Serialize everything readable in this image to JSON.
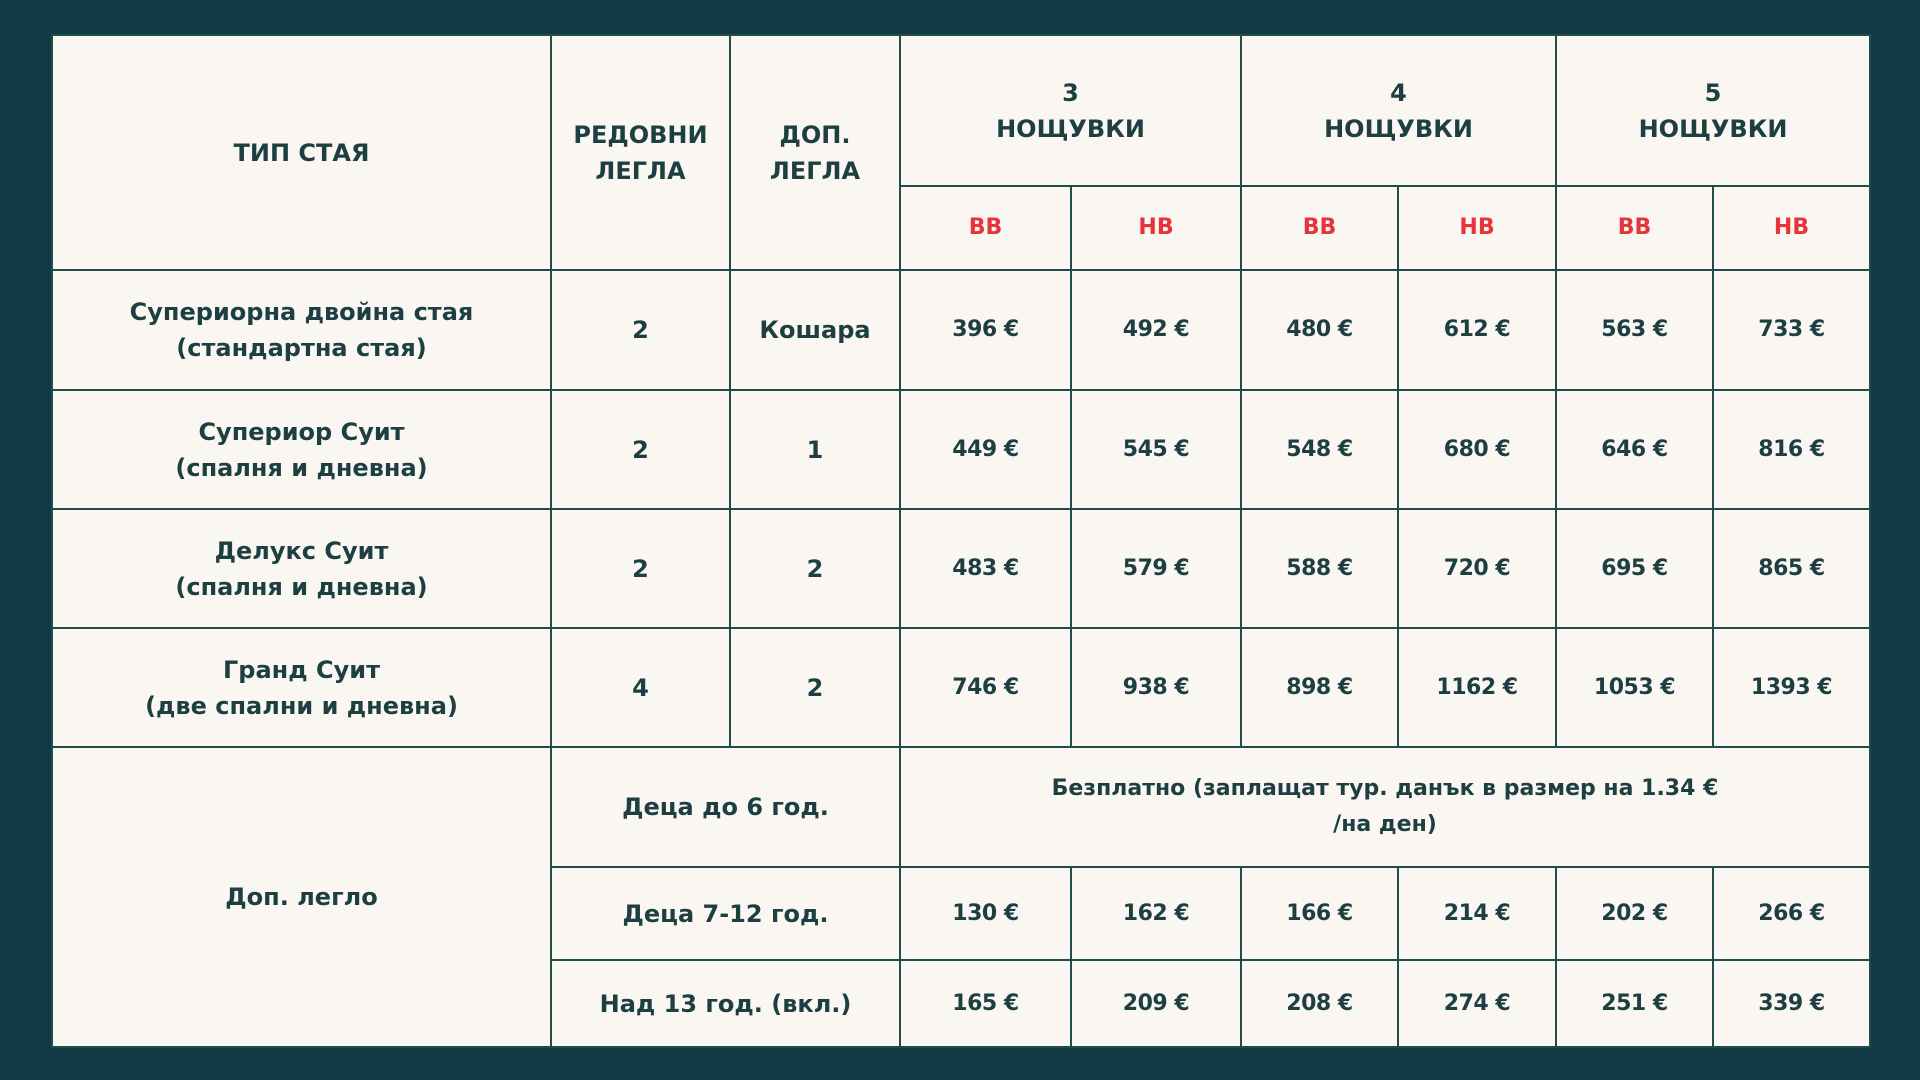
{
  "header": {
    "room_type": "ТИП СТАЯ",
    "regular_beds": [
      "РЕДОВНИ",
      "ЛЕГЛА"
    ],
    "extra_beds": [
      "ДОП.",
      "ЛЕГЛА"
    ],
    "nights": [
      [
        "3",
        "НОЩУВКИ"
      ],
      [
        "4",
        "НОЩУВКИ"
      ],
      [
        "5",
        "НОЩУВКИ"
      ]
    ],
    "rate_headers": [
      "ВВ",
      "НВ",
      "ВВ",
      "НВ",
      "ВВ",
      "НВ"
    ]
  },
  "rooms": [
    {
      "name": [
        "Супериорна двойна стая",
        "(стандартна стая)"
      ],
      "regular": "2",
      "extra": "Кошара",
      "prices": [
        "396 €",
        "492 €",
        "480 €",
        "612 €",
        "563 €",
        "733 €"
      ]
    },
    {
      "name": [
        "Супериор Суит",
        "(спалня и дневна)"
      ],
      "regular": "2",
      "extra": "1",
      "prices": [
        "449 €",
        "545 €",
        "548 €",
        "680 €",
        "646 €",
        "816 €"
      ]
    },
    {
      "name": [
        "Делукс Суит",
        "(спалня и дневна)"
      ],
      "regular": "2",
      "extra": "2",
      "prices": [
        "483 €",
        "579 €",
        "588 €",
        "720 €",
        "695 €",
        "865 €"
      ]
    },
    {
      "name": [
        "Гранд Суит",
        "(две спални и дневна)"
      ],
      "regular": "4",
      "extra": "2",
      "prices": [
        "746 €",
        "938 €",
        "898 €",
        "1162 €",
        "1053 €",
        "1393 €"
      ]
    }
  ],
  "extra_bed": {
    "label": "Доп. легло",
    "rows": [
      {
        "label": "Деца до 6 год.",
        "note": "Безплатно (заплащат тур. данък в размер на 1.34 € /на ден)"
      },
      {
        "label": "Деца 7-12 год.",
        "prices": [
          "130 €",
          "162 €",
          "166 €",
          "214 €",
          "202 €",
          "266 €"
        ]
      },
      {
        "label": "Над 13 год. (вкл.)",
        "prices": [
          "165 €",
          "209 €",
          "208 €",
          "274 €",
          "251 €",
          "339 €"
        ]
      }
    ]
  }
}
